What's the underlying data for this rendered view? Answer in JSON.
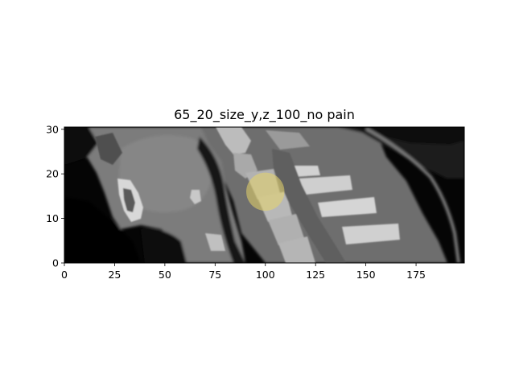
{
  "figure": {
    "title": "65_20_size_y,z_100_no pain"
  },
  "chart_data": {
    "type": "image",
    "title": "65_20_size_y,z_100_no pain",
    "xlim": [
      0,
      199
    ],
    "ylim": [
      0,
      30.5
    ],
    "x_ticks": [
      0,
      25,
      50,
      75,
      100,
      125,
      150,
      175
    ],
    "y_ticks": [
      0,
      10,
      20,
      30
    ],
    "overlay": {
      "shape": "circle",
      "color": "#e8d66a",
      "center": [
        100,
        16
      ],
      "radius": 9.5
    }
  }
}
